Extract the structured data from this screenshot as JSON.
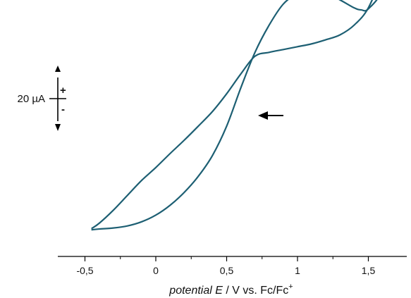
{
  "chart_data": {
    "type": "line",
    "title": "",
    "xlabel_parts": {
      "italic": "potential E",
      "rest": " / V vs. Fc/Fc",
      "superscript": "+"
    },
    "ylabel": "",
    "xlim": [
      -0.7,
      1.75
    ],
    "x_ticks": [
      {
        "value": -0.5,
        "label": "-0,5"
      },
      {
        "value": 0,
        "label": "0"
      },
      {
        "value": 0.5,
        "label": "0,5"
      },
      {
        "value": 1,
        "label": "1"
      },
      {
        "value": 1.5,
        "label": "1,5"
      }
    ],
    "x_minor_ticks": [
      -0.25,
      0.25,
      0.75,
      1.25
    ],
    "grid": false,
    "scale_bar": {
      "label": "20 µA",
      "value_uA": 20,
      "plus_label": "+",
      "minus_label": "-"
    },
    "sweep_direction": "left",
    "line_color": "#1d5f73",
    "series": [
      {
        "x": [
          -0.45,
          -0.4,
          -0.3,
          -0.2,
          -0.1,
          0.0,
          0.1,
          0.2,
          0.3,
          0.4,
          0.5,
          0.6,
          0.7,
          0.8,
          0.9,
          1.0,
          1.1,
          1.2,
          1.3,
          1.4,
          1.5,
          1.6,
          1.65
        ],
        "y": [
          -50.4,
          -48.5,
          -43.4,
          -37.6,
          -31.8,
          -26.8,
          -21.4,
          -16.2,
          -10.7,
          -5.0,
          1.9,
          9.6,
          16.5,
          18.0,
          19.1,
          20.2,
          21.3,
          22.9,
          24.8,
          28.6,
          35.3,
          49.1,
          59.9
        ]
      },
      {
        "x": [
          1.65,
          1.6,
          1.5,
          1.45,
          1.4,
          1.3,
          1.2,
          1.1,
          1.0,
          0.9,
          0.8,
          0.7,
          0.6,
          0.5,
          0.4,
          0.3,
          0.2,
          0.1,
          0.0,
          -0.1,
          -0.2,
          -0.3,
          -0.4,
          -0.45
        ],
        "y": [
          59.9,
          42.7,
          34.9,
          34.5,
          35.3,
          38.4,
          41.1,
          41.9,
          40.8,
          36.8,
          28.6,
          18.0,
          4.2,
          -10.7,
          -22.1,
          -30.2,
          -36.5,
          -41.5,
          -45.3,
          -47.9,
          -49.5,
          -50.3,
          -50.7,
          -51.0
        ]
      }
    ]
  },
  "icons": {
    "direction_arrow": "arrow-left-icon",
    "scale_arrows": "double-arrow-vertical-icon"
  }
}
